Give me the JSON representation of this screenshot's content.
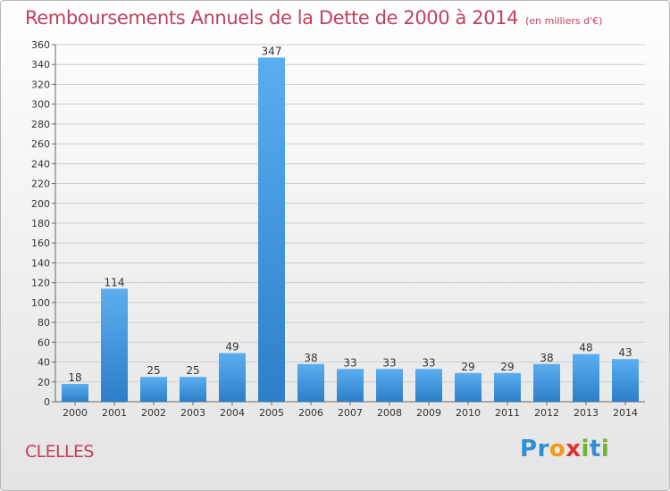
{
  "title": "Remboursements Annuels de la Dette de 2000 à 2014",
  "unit_note": "(en milliers d'€)",
  "town": "CLELLES",
  "logo": {
    "text": "Proxiti",
    "letters": [
      {
        "ch": "P",
        "color": "#2e8fd6"
      },
      {
        "ch": "r",
        "color": "#2e8fd6"
      },
      {
        "ch": "o",
        "color": "#f29a1a"
      },
      {
        "ch": "x",
        "color": "#e0312c"
      },
      {
        "ch": "i",
        "color": "#6cb52d"
      },
      {
        "ch": "t",
        "color": "#2e8fd6"
      },
      {
        "ch": "i",
        "color": "#6cb52d"
      }
    ]
  },
  "colors": {
    "title": "#c0405c",
    "bar_top": "#5aaef0",
    "bar_bottom": "#2c7fc8",
    "grid": "#cfcfcf"
  },
  "chart_data": {
    "type": "bar",
    "title": "Remboursements Annuels de la Dette de 2000 à 2014",
    "categories": [
      "2000",
      "2001",
      "2002",
      "2003",
      "2004",
      "2005",
      "2006",
      "2007",
      "2008",
      "2009",
      "2010",
      "2011",
      "2012",
      "2013",
      "2014"
    ],
    "values": [
      18,
      114,
      25,
      25,
      49,
      347,
      38,
      33,
      33,
      33,
      29,
      29,
      38,
      48,
      43
    ],
    "ylim": [
      0,
      360
    ],
    "yticks": [
      0,
      20,
      40,
      60,
      80,
      100,
      120,
      140,
      160,
      180,
      200,
      220,
      240,
      260,
      280,
      300,
      320,
      340,
      360
    ],
    "grid": true,
    "xlabel": "",
    "ylabel": ""
  }
}
